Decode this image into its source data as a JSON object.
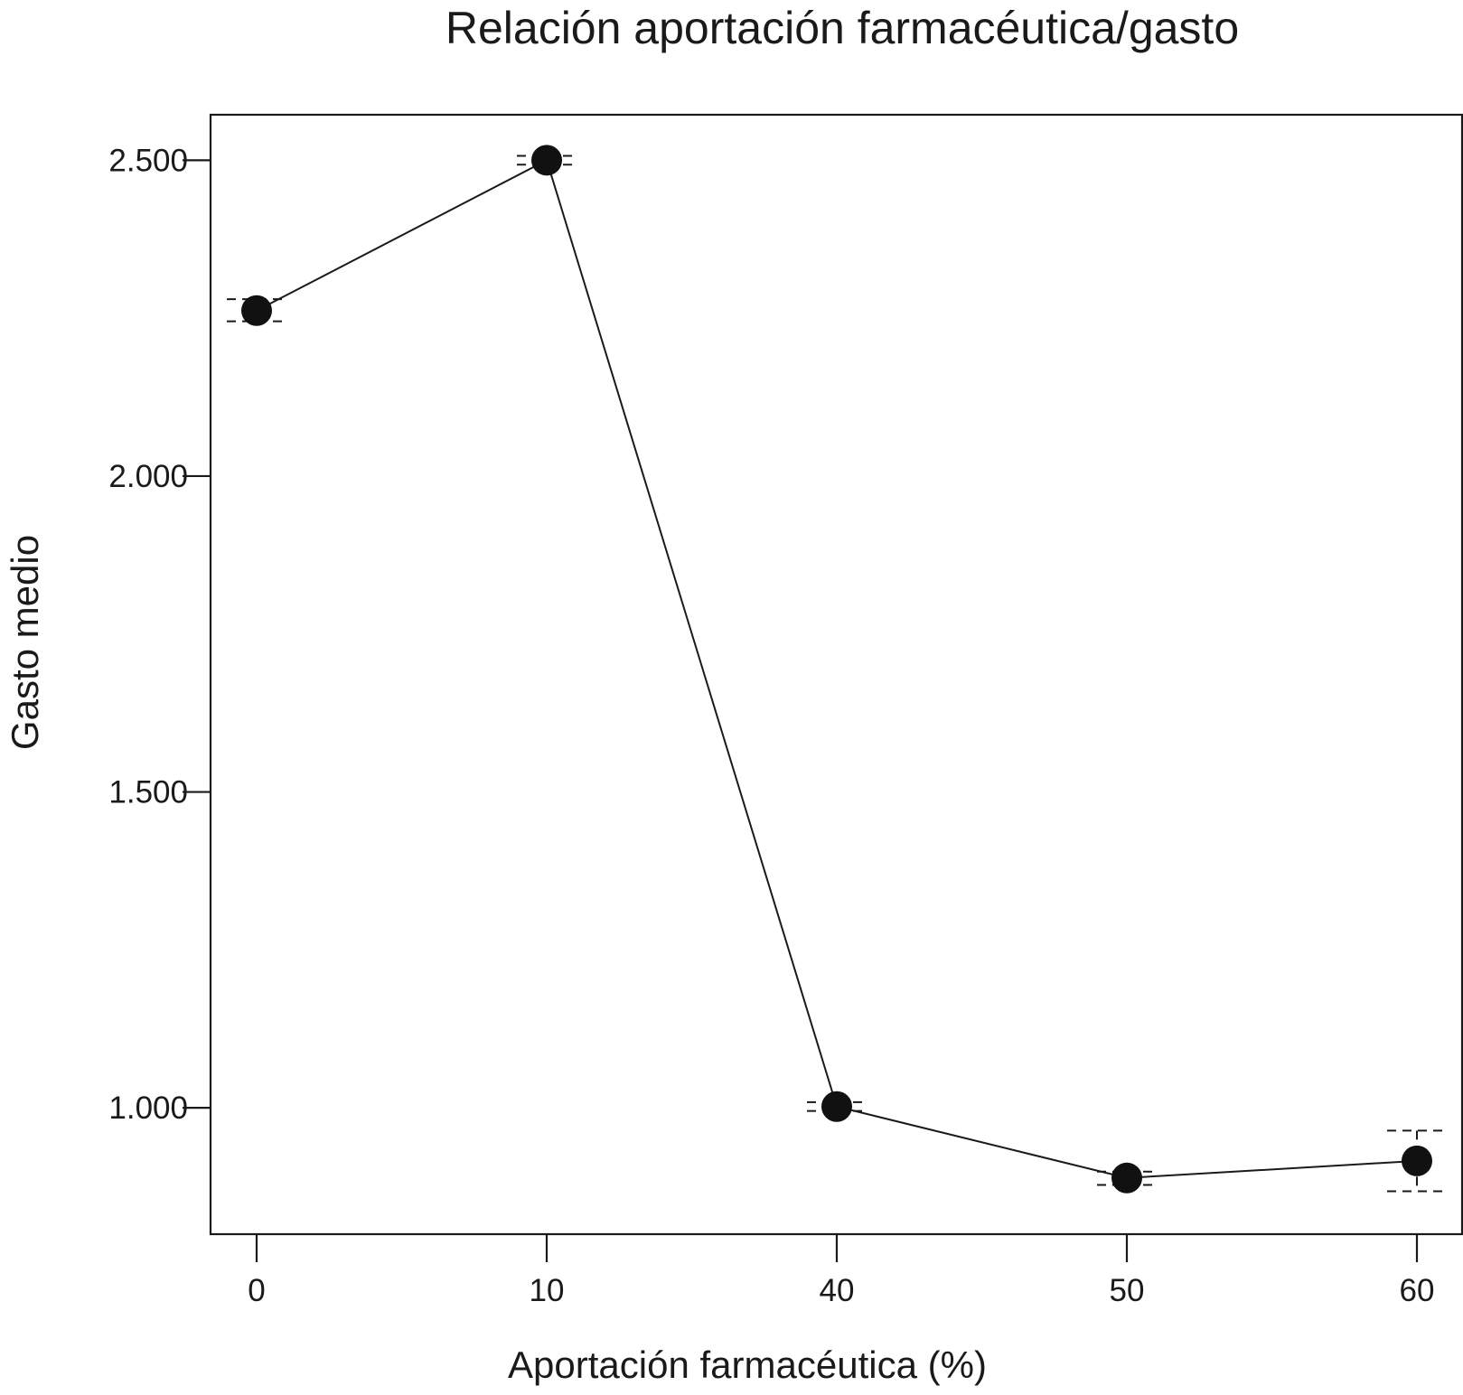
{
  "chart_data": {
    "type": "line",
    "title": "Relación aportación farmacéutica/gasto",
    "xlabel": "Aportación farmacéutica (%)",
    "ylabel": "Gasto medio",
    "categories": [
      "0",
      "10",
      "40",
      "50",
      "60"
    ],
    "series": [
      {
        "values": [
          2262,
          2500,
          1002,
          889,
          916
        ],
        "error_low": [
          2245,
          2493,
          995,
          878,
          868
        ],
        "error_high": [
          2280,
          2507,
          1009,
          899,
          964
        ]
      }
    ],
    "yticks": [
      1000,
      1500,
      2000,
      2500
    ],
    "ytick_labels": [
      "1.000",
      "1.500",
      "2.000",
      "2.500"
    ],
    "ylim": [
      800,
      2572
    ],
    "grid": false,
    "legend": false,
    "colors": {
      "line": "#1a1a1a",
      "marker": "#111111",
      "frame": "#1a1a1a"
    }
  }
}
